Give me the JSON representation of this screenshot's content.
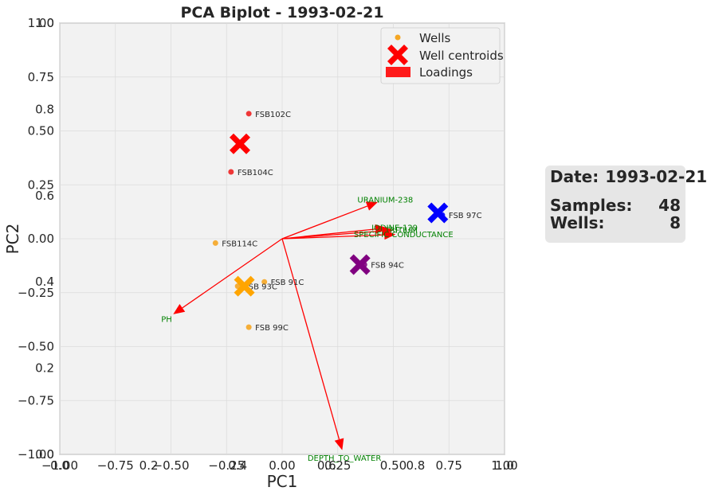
{
  "chart_data": {
    "type": "scatter",
    "title": "PCA Biplot - 1993-02-21",
    "xlabel": "PC1",
    "ylabel": "PC2",
    "xlim": [
      -1,
      1
    ],
    "ylim": [
      -1,
      1
    ],
    "grid": true,
    "legend_position": "top-right",
    "x_ticks": [
      "−1.00",
      "−0.75",
      "−0.50",
      "−0.25",
      "0.00",
      "0.25",
      "0.50",
      "0.75",
      "1.00"
    ],
    "y_ticks": [
      "−1.00",
      "−0.75",
      "−0.50",
      "−0.25",
      "0.00",
      "0.25",
      "0.50",
      "0.75",
      "1.00"
    ],
    "x_ticks_secondary": [
      "0.0",
      "0.2",
      "0.4",
      "0.6",
      "0.8",
      "1.0"
    ],
    "y_ticks_secondary": [
      "0.0",
      "0.2",
      "0.4",
      "0.6",
      "0.8",
      "1.0"
    ],
    "legend": [
      "Wells",
      "Well centroids",
      "Loadings"
    ],
    "points": [
      {
        "label": "FSB102C",
        "x": -0.15,
        "y": 0.58,
        "color": "#ee2222"
      },
      {
        "label": "FSB104C",
        "x": -0.23,
        "y": 0.31,
        "color": "#ee2222"
      },
      {
        "label": "FSB114C",
        "x": -0.3,
        "y": -0.02,
        "color": "#f5a623"
      },
      {
        "label": "FSB 91C",
        "x": -0.08,
        "y": -0.2,
        "color": "#f5a623"
      },
      {
        "label": "FSB 93C",
        "x": -0.2,
        "y": -0.22,
        "color": "#f5a623"
      },
      {
        "label": "FSB 99C",
        "x": -0.15,
        "y": -0.41,
        "color": "#f5a623"
      },
      {
        "label": "FSB 97C",
        "x": 0.72,
        "y": 0.11,
        "color": "#0000ff"
      },
      {
        "label": "FSB 94C",
        "x": 0.37,
        "y": -0.12,
        "color": "#800080"
      }
    ],
    "centroids": [
      {
        "x": -0.19,
        "y": 0.44,
        "color": "#ff0000"
      },
      {
        "x": -0.17,
        "y": -0.22,
        "color": "#ffa500"
      },
      {
        "x": 0.7,
        "y": 0.12,
        "color": "#0000ff"
      },
      {
        "x": 0.35,
        "y": -0.12,
        "color": "#800080"
      }
    ],
    "loadings": [
      {
        "name": "URANIUM-238",
        "x": 0.43,
        "y": 0.17
      },
      {
        "name": "IODINE-129",
        "x": 0.47,
        "y": 0.05
      },
      {
        "name": "TRITIUM",
        "x": 0.5,
        "y": 0.04
      },
      {
        "name": "SPECIFIC CONDUCTANCE",
        "x": 0.51,
        "y": 0.02
      },
      {
        "name": "PH",
        "x": -0.49,
        "y": -0.35
      },
      {
        "name": "DEPTH_TO_WATER",
        "x": 0.27,
        "y": -0.98
      }
    ],
    "loading_color": "#ff0000"
  },
  "stats": {
    "date_label": "Date:",
    "date_value": "1993-02-21",
    "samples_label": "Samples:",
    "samples_value": "48",
    "wells_label": "Wells:",
    "wells_value": "8"
  }
}
